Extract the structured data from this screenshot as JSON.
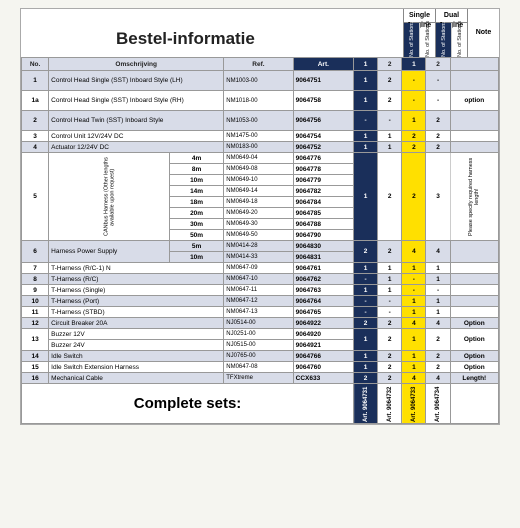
{
  "title": "Bestel-informatie",
  "complete_sets": "Complete sets:",
  "header_groups": {
    "single": "Single Engine",
    "dual": "Dual Engine",
    "note": "Note",
    "stations": "No. of Stations"
  },
  "columns": {
    "no": "No.",
    "desc": "Omschrijving",
    "ref": "Ref.",
    "art": "Art.",
    "q1": "1",
    "q2": "2"
  },
  "rows": [
    {
      "no": "1",
      "desc": "Control Head  Single (SST) Inboard Style (LH)",
      "ref": "NM1003-00",
      "art": "9064751",
      "se": [
        "1",
        "2"
      ],
      "de": [
        "-",
        "-"
      ],
      "shade": true,
      "h2": true
    },
    {
      "no": "1a",
      "desc": "Control Head  Single (SST) Inboard Style (RH)",
      "ref": "NM1018-00",
      "art": "9064758",
      "se": [
        "1",
        "2"
      ],
      "de": [
        "-",
        "-"
      ],
      "note": "option",
      "h2": true
    },
    {
      "no": "2",
      "desc": "Control Head  Twin (SST) Inboard Style",
      "ref": "NM1053-00",
      "art": "9064756",
      "se": [
        "-",
        "-"
      ],
      "de": [
        "1",
        "2"
      ],
      "shade": true,
      "h2": true
    },
    {
      "no": "3",
      "desc": "Control Unit 12V/24V DC",
      "ref": "NM1475-00",
      "art": "9064754",
      "se": [
        "1",
        "1"
      ],
      "de": [
        "2",
        "2"
      ]
    },
    {
      "no": "4",
      "desc": "Actuator 12/24V DC",
      "ref": "NM0183-00",
      "art": "9064752",
      "se": [
        "1",
        "1"
      ],
      "de": [
        "2",
        "2"
      ],
      "shade": true
    }
  ],
  "row5": {
    "no": "5",
    "label": "CANbus Harness (Other lengths available upon request)",
    "se": [
      "1",
      "2"
    ],
    "de": [
      "2",
      "3"
    ],
    "note": "Please specify required harness length!",
    "subs": [
      {
        "len": "4m",
        "ref": "NM0649-04",
        "art": "9064776"
      },
      {
        "len": "8m",
        "ref": "NM0649-08",
        "art": "9064778"
      },
      {
        "len": "10m",
        "ref": "NM0649-10",
        "art": "9064779"
      },
      {
        "len": "14m",
        "ref": "NM0649-14",
        "art": "9064782"
      },
      {
        "len": "18m",
        "ref": "NM0649-18",
        "art": "9064784"
      },
      {
        "len": "20m",
        "ref": "NM0649-20",
        "art": "9064785"
      },
      {
        "len": "30m",
        "ref": "NM0649-30",
        "art": "9064788"
      },
      {
        "len": "50m",
        "ref": "NM0649-50",
        "art": "9064790"
      }
    ]
  },
  "row6": {
    "no": "6",
    "label": "Harness Power Supply",
    "se": [
      "2",
      "2"
    ],
    "de": [
      "4",
      "4"
    ],
    "subs": [
      {
        "len": "5m",
        "ref": "NM0414-28",
        "art": "9064830"
      },
      {
        "len": "10m",
        "ref": "NM0414-33",
        "art": "9064831"
      }
    ],
    "shade": true
  },
  "rows2": [
    {
      "no": "7",
      "desc": "T-Harness (R/C-1) N",
      "ref": "NM0647-09",
      "art": "9064761",
      "se": [
        "1",
        "1"
      ],
      "de": [
        "1",
        "1"
      ]
    },
    {
      "no": "8",
      "desc": "T-Harness (R/C)",
      "ref": "NM0647-10",
      "art": "9064762",
      "se": [
        "-",
        "1"
      ],
      "de": [
        "-",
        "1"
      ],
      "shade": true
    },
    {
      "no": "9",
      "desc": "T-Harness (Single)",
      "ref": "NM0647-11",
      "art": "9064763",
      "se": [
        "1",
        "1"
      ],
      "de": [
        "-",
        "-"
      ]
    },
    {
      "no": "10",
      "desc": "T-Harness (Port)",
      "ref": "NM0647-12",
      "art": "9064764",
      "se": [
        "-",
        "-"
      ],
      "de": [
        "1",
        "1"
      ],
      "shade": true
    },
    {
      "no": "11",
      "desc": "T-Harness (STBD)",
      "ref": "NM0647-13",
      "art": "9064765",
      "se": [
        "-",
        "-"
      ],
      "de": [
        "1",
        "1"
      ]
    },
    {
      "no": "12",
      "desc": "Circuit Breaker 20A",
      "ref": "NJ0514-00",
      "art": "9064922",
      "se": [
        "2",
        "2"
      ],
      "de": [
        "4",
        "4"
      ],
      "note": "Option",
      "shade": true
    }
  ],
  "row13": {
    "no": "13",
    "subs": [
      {
        "desc": "Buzzer 12V",
        "ref": "NJ0251-00",
        "art": "9064920"
      },
      {
        "desc": "Buzzer 24V",
        "ref": "NJ0515-00",
        "art": "9064921"
      }
    ],
    "se": [
      "1",
      "2"
    ],
    "de": [
      "1",
      "2"
    ],
    "note": "Option"
  },
  "rows3": [
    {
      "no": "14",
      "desc": "Idle Switch",
      "ref": "NJ0765-00",
      "art": "9064766",
      "se": [
        "1",
        "2"
      ],
      "de": [
        "1",
        "2"
      ],
      "note": "Option",
      "shade": true
    },
    {
      "no": "15",
      "desc": "Idle Switch Extension Harness",
      "ref": "NM0647-08",
      "art": "9064760",
      "se": [
        "1",
        "2"
      ],
      "de": [
        "1",
        "2"
      ],
      "note": "Option"
    },
    {
      "no": "16",
      "desc": "Mechanical Cable",
      "ref": "TFXtreme",
      "art": "CCX633",
      "se": [
        "2",
        "2"
      ],
      "de": [
        "4",
        "4"
      ],
      "note": "Length!",
      "shade": true
    }
  ],
  "complete_arts": [
    "Art. 9064731",
    "Art. 9064732",
    "Art. 9064733",
    "Art. 9064734"
  ]
}
